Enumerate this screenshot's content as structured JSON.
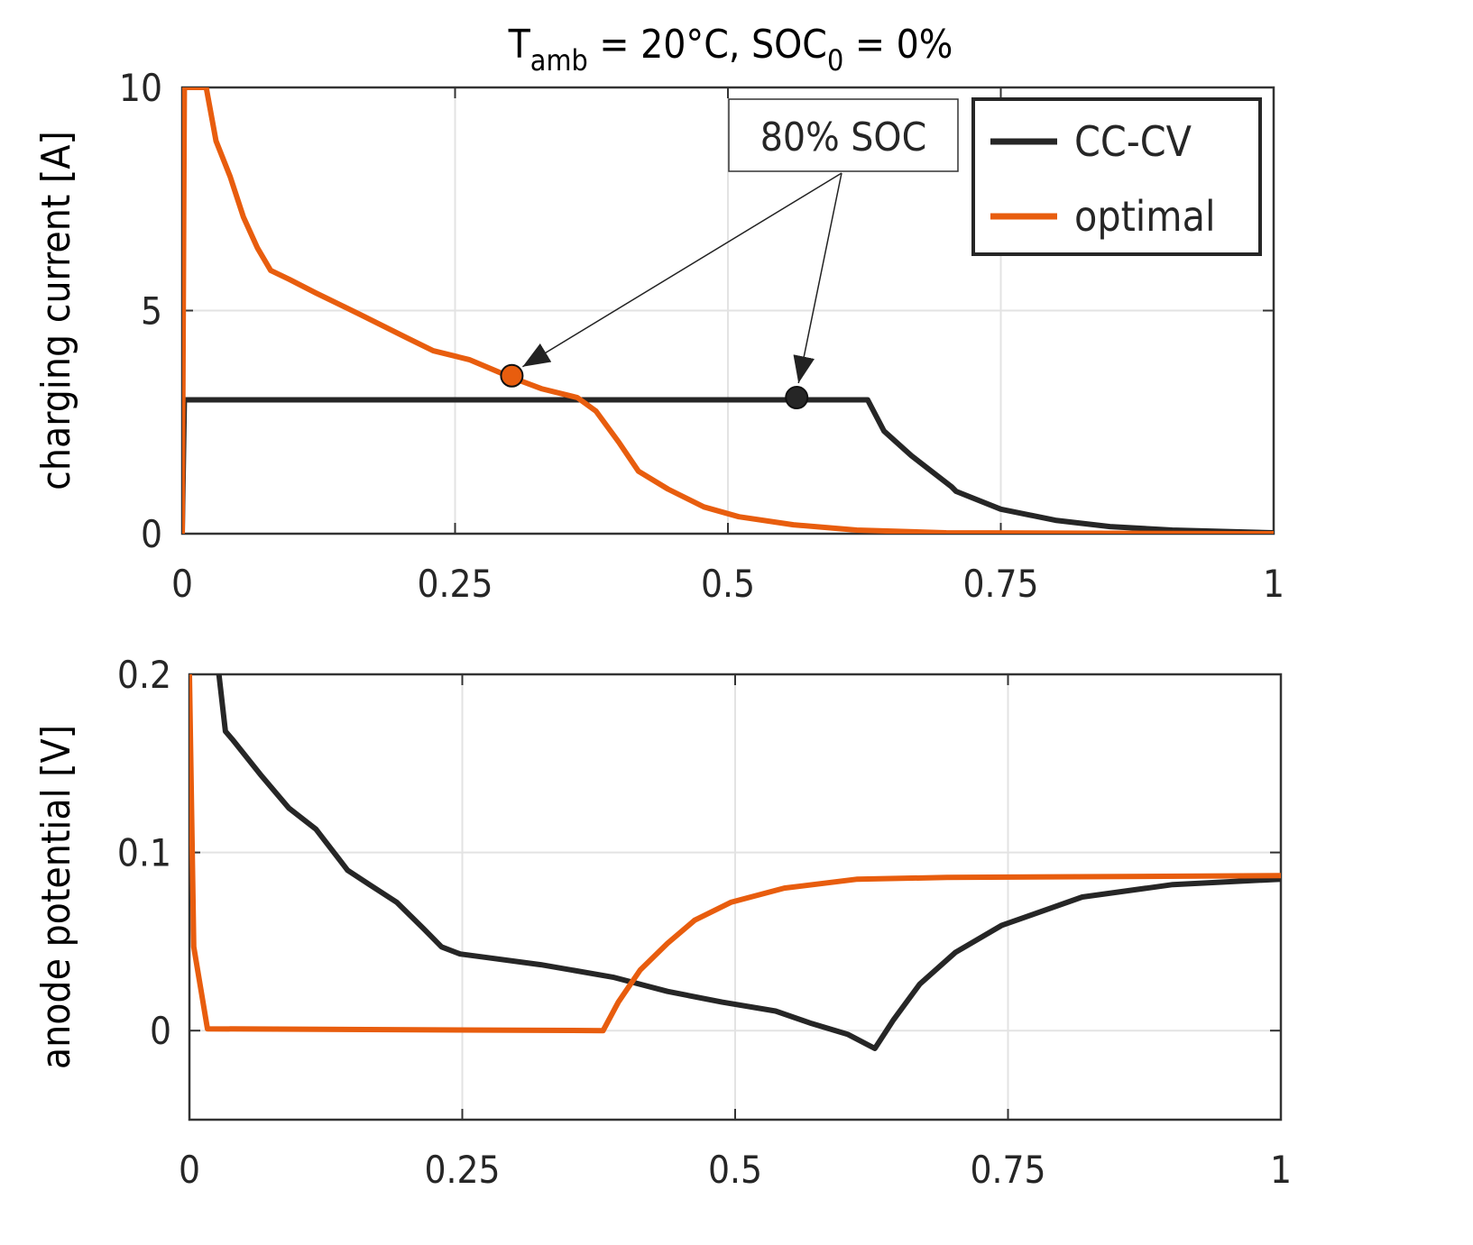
{
  "title": {
    "main": "T",
    "sub1": "amb",
    "mid": " = 20°C, SOC",
    "sub2": "0",
    "end": " = 0%"
  },
  "colors": {
    "cccv": "#262626",
    "optimal": "#E85D0E",
    "grid": "#e3e3e3",
    "axis": "#333333"
  },
  "chart_data": [
    {
      "type": "line",
      "ylabel": "charging current [A]",
      "xlabel": "",
      "xlim": [
        0,
        1
      ],
      "ylim": [
        0,
        10
      ],
      "xticks": [
        "0",
        "0.25",
        "0.5",
        "0.75",
        "1"
      ],
      "yticks": [
        "0",
        "5",
        "10"
      ],
      "grid": true,
      "legend": {
        "placement": "top-right",
        "entries": [
          "CC-CV",
          "optimal"
        ]
      },
      "annotation": {
        "text": "80% SOC",
        "points": [
          [
            0.302,
            3.54
          ],
          [
            0.563,
            3.05
          ]
        ]
      },
      "series": [
        {
          "name": "CC-CV",
          "x": [
            0,
            0.002,
            0.628,
            0.643,
            0.668,
            0.705,
            0.709,
            0.75,
            0.8,
            0.85,
            0.907,
            1.0
          ],
          "y": [
            0,
            3.0,
            3.0,
            2.3,
            1.75,
            1.05,
            0.95,
            0.55,
            0.3,
            0.16,
            0.08,
            0.02
          ]
        },
        {
          "name": "optimal",
          "x": [
            0,
            0.002,
            0.022,
            0.031,
            0.044,
            0.056,
            0.069,
            0.081,
            0.098,
            0.122,
            0.164,
            0.205,
            0.23,
            0.263,
            0.302,
            0.329,
            0.362,
            0.379,
            0.4,
            0.418,
            0.445,
            0.478,
            0.51,
            0.56,
            0.618,
            0.7,
            1.0
          ],
          "y": [
            0,
            10,
            10,
            8.8,
            8.0,
            7.1,
            6.4,
            5.9,
            5.7,
            5.4,
            4.9,
            4.4,
            4.1,
            3.9,
            3.5,
            3.25,
            3.05,
            2.75,
            2.05,
            1.4,
            1.0,
            0.6,
            0.38,
            0.2,
            0.08,
            0.02,
            0.0
          ]
        }
      ]
    },
    {
      "type": "line",
      "ylabel": "anode potential [V]",
      "xlabel": "",
      "xlim": [
        0,
        1
      ],
      "ylim": [
        -0.05,
        0.2
      ],
      "xticks": [
        "0",
        "0.25",
        "0.5",
        "0.75",
        "1"
      ],
      "yticks": [
        "0",
        "0.1",
        "0.2"
      ],
      "grid": true,
      "series": [
        {
          "name": "CC-CV",
          "x": [
            0.027,
            0.033,
            0.04,
            0.066,
            0.091,
            0.116,
            0.145,
            0.165,
            0.19,
            0.215,
            0.231,
            0.248,
            0.273,
            0.322,
            0.388,
            0.438,
            0.488,
            0.537,
            0.57,
            0.603,
            0.628,
            0.645,
            0.669,
            0.702,
            0.744,
            0.818,
            0.901,
            1.0
          ],
          "y": [
            0.2,
            0.168,
            0.163,
            0.143,
            0.125,
            0.113,
            0.09,
            0.082,
            0.072,
            0.057,
            0.047,
            0.043,
            0.041,
            0.037,
            0.03,
            0.022,
            0.016,
            0.011,
            0.004,
            -0.002,
            -0.01,
            0.006,
            0.026,
            0.044,
            0.059,
            0.075,
            0.082,
            0.085
          ]
        },
        {
          "name": "optimal",
          "x": [
            0,
            0.004,
            0.0165,
            0.379,
            0.393,
            0.413,
            0.438,
            0.463,
            0.496,
            0.545,
            0.612,
            0.694,
            1.0
          ],
          "y": [
            0.2,
            0.047,
            0.001,
            0.0,
            0.016,
            0.034,
            0.049,
            0.062,
            0.072,
            0.08,
            0.085,
            0.086,
            0.087
          ]
        }
      ]
    }
  ]
}
